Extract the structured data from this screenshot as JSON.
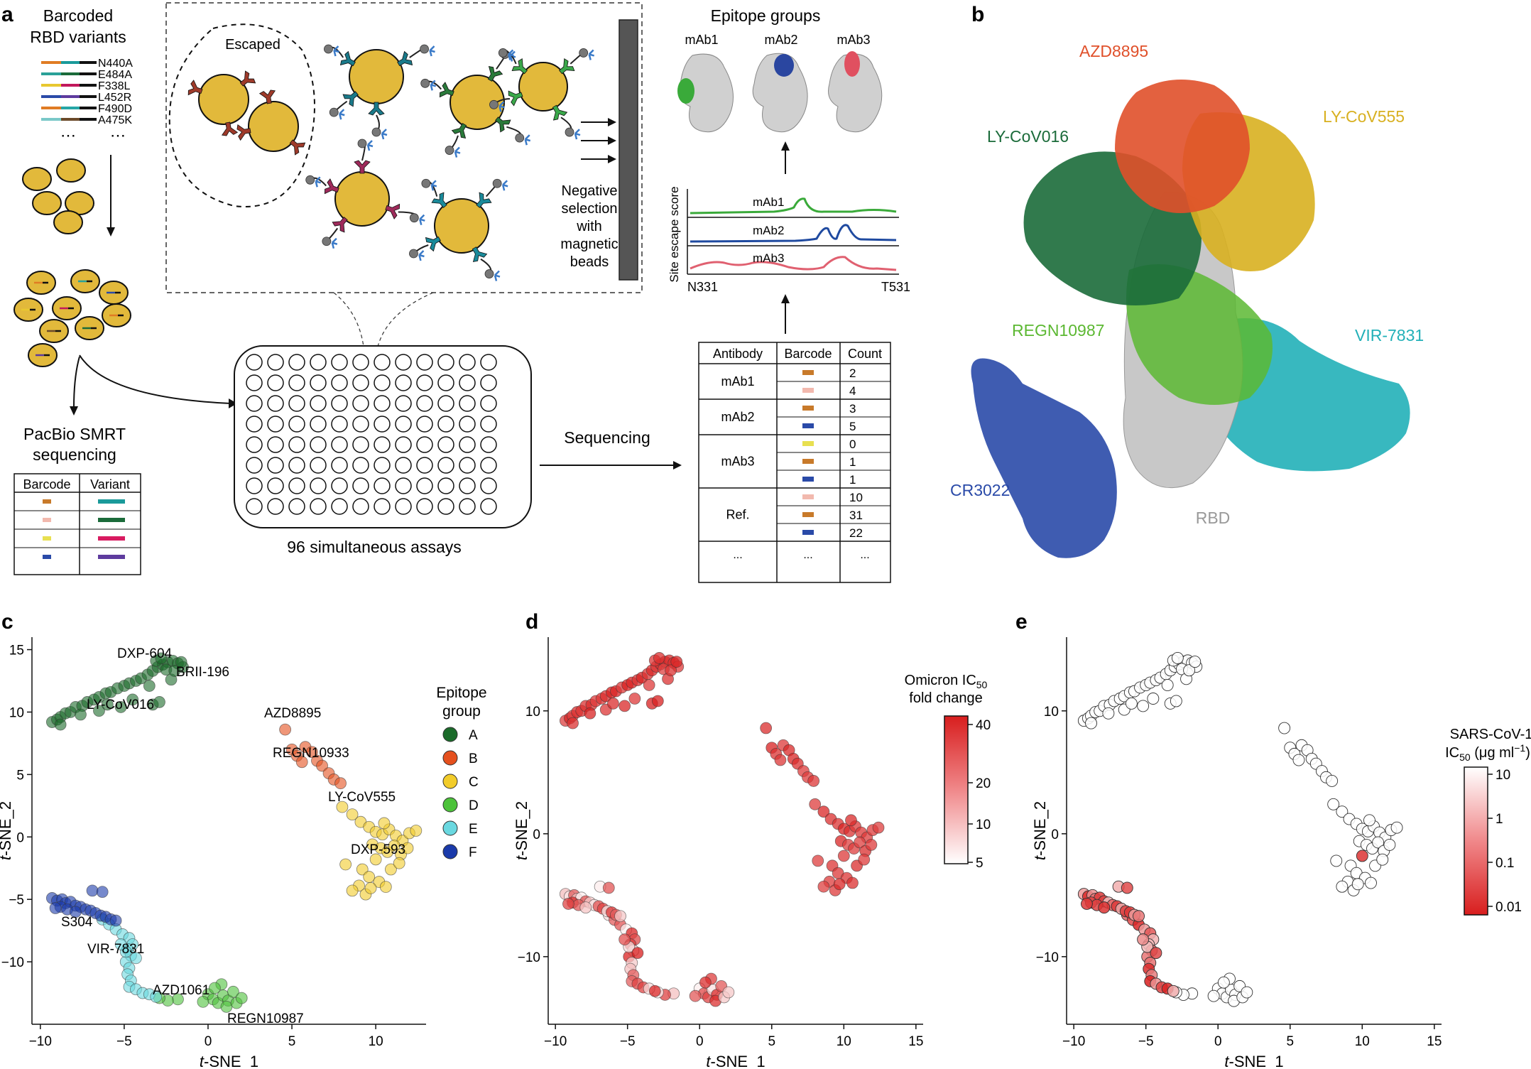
{
  "panel_labels": {
    "a": "a",
    "b": "b",
    "c": "c",
    "d": "d",
    "e": "e"
  },
  "panel_a": {
    "barcoded_title_1": "Barcoded",
    "barcoded_title_2": "RBD variants",
    "variants": [
      {
        "label": "N440A",
        "left": "#e07c24",
        "right": "#1a9a9a"
      },
      {
        "label": "E484A",
        "left": "#2aa198",
        "right": "#1b6b3a"
      },
      {
        "label": "F338L",
        "left": "#e8c830",
        "right": "#c2185b"
      },
      {
        "label": "L452R",
        "left": "#2a4aa8",
        "right": "#5e3b9e"
      },
      {
        "label": "F490D",
        "left": "#e07c24",
        "right": "#26a6a6"
      },
      {
        "label": "A475K",
        "left": "#7ac8c8",
        "right": "#6b4a2a"
      }
    ],
    "ellipsis": "⋯",
    "escaped_label": "Escaped",
    "negative_selection": [
      "Negative",
      "selection",
      "with",
      "magnetic",
      "beads"
    ],
    "pacbio_1": "PacBio SMRT",
    "pacbio_2": "sequencing",
    "barcode_table": {
      "headers": [
        "Barcode",
        "Variant"
      ],
      "rows": [
        {
          "barcode": "#c87a2a",
          "variant": "#1a9a9a"
        },
        {
          "barcode": "#f2b9ae",
          "variant": "#1b6b3a"
        },
        {
          "barcode": "#e8e050",
          "variant": "#d81b60"
        },
        {
          "barcode": "#2a4aa8",
          "variant": "#5e3b9e"
        }
      ]
    },
    "plate_label": "96 simultaneous assays",
    "sequencing_label": "Sequencing",
    "count_table": {
      "headers": [
        "Antibody",
        "Barcode",
        "Count"
      ],
      "groups": [
        {
          "name": "mAb1",
          "rows": [
            {
              "color": "#c87a2a",
              "count": "2"
            },
            {
              "color": "#f2b9ae",
              "count": "4"
            }
          ]
        },
        {
          "name": "mAb2",
          "rows": [
            {
              "color": "#c87a2a",
              "count": "3"
            },
            {
              "color": "#2a4aa8",
              "count": "5"
            }
          ]
        },
        {
          "name": "mAb3",
          "rows": [
            {
              "color": "#e8e050",
              "count": "0"
            },
            {
              "color": "#c87a2a",
              "count": "1"
            },
            {
              "color": "#2a4aa8",
              "count": "1"
            }
          ]
        },
        {
          "name": "Ref.",
          "rows": [
            {
              "color": "#f2b9ae",
              "count": "10"
            },
            {
              "color": "#c87a2a",
              "count": "31"
            },
            {
              "color": "#2a4aa8",
              "count": "22"
            }
          ]
        }
      ],
      "footer": [
        "...",
        "...",
        "..."
      ]
    },
    "epitope_groups_title": "Epitope groups",
    "mab_labels": [
      "mAb1",
      "mAb2",
      "mAb3"
    ],
    "escape_plot": {
      "ylabel": "Site escape score",
      "x_start": "N331",
      "x_end": "T531",
      "traces": [
        {
          "name": "mAb1",
          "color": "#3aaa3a"
        },
        {
          "name": "mAb2",
          "color": "#1f4aa0"
        },
        {
          "name": "mAb3",
          "color": "#e06070"
        }
      ]
    }
  },
  "panel_b": {
    "antibodies": [
      {
        "name": "AZD8895",
        "color": "#e0502a"
      },
      {
        "name": "LY-CoV555",
        "color": "#d8b020"
      },
      {
        "name": "LY-CoV016",
        "color": "#1b6b3a"
      },
      {
        "name": "REGN10987",
        "color": "#5cb832"
      },
      {
        "name": "VIR-7831",
        "color": "#22b0b8"
      },
      {
        "name": "CR3022",
        "color": "#2a4aa8"
      }
    ],
    "rbd_label": "RBD"
  },
  "panel_c": {
    "legend_title_1": "Epitope",
    "legend_title_2": "group",
    "groups": [
      {
        "name": "A",
        "color": "#1b6b2a"
      },
      {
        "name": "B",
        "color": "#e5501e"
      },
      {
        "name": "C",
        "color": "#f2cc2a"
      },
      {
        "name": "D",
        "color": "#4cc23a"
      },
      {
        "name": "E",
        "color": "#6ad8e0"
      },
      {
        "name": "F",
        "color": "#1a3aaa"
      }
    ],
    "annotations": [
      "DXP-604",
      "BRII-196",
      "LY-CoV016",
      "AZD8895",
      "REGN10933",
      "LY-CoV555",
      "DXP-593",
      "S304",
      "VIR-7831",
      "AZD1061",
      "REGN10987"
    ]
  },
  "panel_d": {
    "legend_title_1": "Omicron IC",
    "legend_title_sub": "50",
    "legend_title_2": "fold change",
    "ticks": [
      "40",
      "20",
      "10",
      "5"
    ]
  },
  "panel_e": {
    "legend_title_1": "SARS-CoV-1",
    "legend_title_2": "IC",
    "legend_title_sub": "50",
    "legend_title_3": " (μg ml",
    "legend_title_sup": "−1",
    "legend_title_4": ")",
    "ticks": [
      "10",
      "1",
      "0.1",
      "0.01"
    ]
  },
  "tsne_axes": {
    "xlabel_italic": "t",
    "xlabel_rest": "-SNE_1",
    "ylabel_italic": "t",
    "ylabel_rest": "-SNE_2",
    "c_xticks": [
      "−10",
      "−5",
      "0",
      "5",
      "10"
    ],
    "c_yticks": [
      "15",
      "10",
      "5",
      "0",
      "−5",
      "−10"
    ],
    "de_xticks": [
      "−10",
      "−5",
      "0",
      "5",
      "10",
      "15"
    ],
    "de_yticks": [
      "10",
      "0",
      "−10"
    ]
  },
  "chart_data": [
    {
      "type": "scatter",
      "title": "",
      "xlabel": "t-SNE_1",
      "ylabel": "t-SNE_2",
      "xlim": [
        -10.5,
        13
      ],
      "ylim": [
        -15,
        16
      ],
      "color_by": "Epitope group",
      "series": [
        {
          "name": "A",
          "points": [
            [
              -9.3,
              9.2
            ],
            [
              -9,
              9.4
            ],
            [
              -8.8,
              9.6
            ],
            [
              -8.5,
              9.9
            ],
            [
              -8.2,
              10
            ],
            [
              -7.9,
              10.4
            ],
            [
              -7.5,
              10.5
            ],
            [
              -7.2,
              10.8
            ],
            [
              -6.8,
              11
            ],
            [
              -6.5,
              11.2
            ],
            [
              -6.1,
              11.5
            ],
            [
              -5.8,
              11.6
            ],
            [
              -5.4,
              11.9
            ],
            [
              -5,
              12.1
            ],
            [
              -4.7,
              12.3
            ],
            [
              -4.3,
              12.5
            ],
            [
              -4,
              12.7
            ],
            [
              -3.6,
              13
            ],
            [
              -3.3,
              13.3
            ],
            [
              -3,
              13.6
            ],
            [
              -2.7,
              13.8
            ],
            [
              -2.4,
              14
            ],
            [
              -2.1,
              14.1
            ],
            [
              -1.8,
              13.9
            ],
            [
              -1.5,
              13.6
            ],
            [
              -3.1,
              14.1
            ],
            [
              -2.8,
              14.3
            ],
            [
              -2.5,
              13.4
            ],
            [
              -3.5,
              12.1
            ],
            [
              -2.2,
              12.6
            ],
            [
              -3.3,
              10.6
            ],
            [
              -5.2,
              10.4
            ],
            [
              -6.5,
              10.1
            ],
            [
              -8.8,
              9.0
            ],
            [
              -4.5,
              11.0
            ],
            [
              -6.0,
              10.6
            ],
            [
              -2.9,
              10.8
            ],
            [
              -7.6,
              9.8
            ],
            [
              -2.0,
              13.3
            ],
            [
              -1.6,
              14.0
            ]
          ]
        },
        {
          "name": "B",
          "points": [
            [
              4.6,
              8.6
            ],
            [
              5.0,
              7.0
            ],
            [
              5.3,
              6.5
            ],
            [
              5.8,
              7.2
            ],
            [
              6.2,
              6.8
            ],
            [
              6.5,
              6.1
            ],
            [
              5.6,
              6.0
            ],
            [
              6.8,
              5.7
            ],
            [
              7.2,
              5.1
            ],
            [
              7.5,
              4.6
            ],
            [
              7.9,
              4.3
            ]
          ]
        },
        {
          "name": "C",
          "points": [
            [
              8.0,
              2.4
            ],
            [
              8.6,
              1.8
            ],
            [
              9.1,
              1.2
            ],
            [
              9.6,
              0.8
            ],
            [
              10.0,
              0.4
            ],
            [
              10.4,
              0.2
            ],
            [
              10.8,
              0.6
            ],
            [
              11.2,
              0.1
            ],
            [
              11.6,
              -0.3
            ],
            [
              12.0,
              0.3
            ],
            [
              12.4,
              0.5
            ],
            [
              9.8,
              -0.6
            ],
            [
              10.3,
              -0.9
            ],
            [
              10.7,
              -1.2
            ],
            [
              11.1,
              -0.7
            ],
            [
              11.5,
              -1.4
            ],
            [
              10.0,
              -1.8
            ],
            [
              9.2,
              -2.6
            ],
            [
              9.6,
              -3.2
            ],
            [
              10.2,
              -3.6
            ],
            [
              10.6,
              -4.0
            ],
            [
              9.0,
              -3.9
            ],
            [
              8.6,
              -4.3
            ],
            [
              9.4,
              -4.6
            ],
            [
              10.9,
              -2.6
            ],
            [
              11.4,
              -2.1
            ],
            [
              10.5,
              1.1
            ],
            [
              11.9,
              -0.9
            ],
            [
              8.2,
              -2.2
            ],
            [
              9.7,
              -4.1
            ]
          ]
        },
        {
          "name": "D",
          "points": [
            [
              0.0,
              -12.6
            ],
            [
              0.3,
              -13.0
            ],
            [
              0.6,
              -13.3
            ],
            [
              0.9,
              -12.7
            ],
            [
              1.2,
              -13.1
            ],
            [
              1.5,
              -12.4
            ],
            [
              0.8,
              -11.8
            ],
            [
              1.1,
              -13.6
            ],
            [
              0.4,
              -12.1
            ],
            [
              1.7,
              -13.3
            ],
            [
              2.0,
              -12.9
            ],
            [
              -0.3,
              -13.2
            ],
            [
              -1.8,
              -13.0
            ],
            [
              -2.4,
              -13.1
            ],
            [
              -2.9,
              -12.9
            ]
          ]
        },
        {
          "name": "E",
          "points": [
            [
              -6.3,
              -6.6
            ],
            [
              -5.9,
              -7.0
            ],
            [
              -5.5,
              -7.4
            ],
            [
              -5.1,
              -7.8
            ],
            [
              -4.7,
              -8.1
            ],
            [
              -4.5,
              -8.6
            ],
            [
              -4.8,
              -9.0
            ],
            [
              -4.6,
              -9.5
            ],
            [
              -4.9,
              -10.0
            ],
            [
              -4.7,
              -10.5
            ],
            [
              -4.8,
              -11.0
            ],
            [
              -4.6,
              -11.5
            ],
            [
              -4.7,
              -12.0
            ],
            [
              -4.3,
              -12.2
            ],
            [
              -3.9,
              -12.5
            ],
            [
              -3.5,
              -12.6
            ],
            [
              -3.1,
              -12.8
            ],
            [
              -4.9,
              -9.2
            ],
            [
              -4.3,
              -9.7
            ],
            [
              -5.2,
              -8.6
            ]
          ]
        },
        {
          "name": "F",
          "points": [
            [
              -9.3,
              -4.9
            ],
            [
              -9.0,
              -5.1
            ],
            [
              -8.7,
              -5.0
            ],
            [
              -8.5,
              -5.3
            ],
            [
              -8.2,
              -5.2
            ],
            [
              -7.9,
              -5.5
            ],
            [
              -7.6,
              -5.6
            ],
            [
              -7.3,
              -5.8
            ],
            [
              -7.0,
              -5.9
            ],
            [
              -6.7,
              -6.1
            ],
            [
              -6.4,
              -6.3
            ],
            [
              -6.1,
              -6.4
            ],
            [
              -5.8,
              -6.6
            ],
            [
              -5.5,
              -6.7
            ],
            [
              -8.8,
              -5.6
            ],
            [
              -8.4,
              -5.8
            ],
            [
              -7.9,
              -6.0
            ],
            [
              -6.9,
              -4.3
            ],
            [
              -6.3,
              -4.4
            ],
            [
              -9.1,
              -5.7
            ]
          ]
        }
      ]
    },
    {
      "type": "scatter",
      "title": "",
      "xlabel": "t-SNE_1",
      "ylabel": "t-SNE_2",
      "xlim": [
        -10.5,
        15.5
      ],
      "ylim": [
        -15.5,
        16
      ],
      "color_by": "Omicron IC50 fold change",
      "color_scale": [
        5,
        40
      ],
      "note": "same coordinates as panel c"
    },
    {
      "type": "scatter",
      "title": "",
      "xlabel": "t-SNE_1",
      "ylabel": "t-SNE_2",
      "xlim": [
        -10.5,
        15.5
      ],
      "ylim": [
        -15.5,
        16
      ],
      "color_by": "SARS-CoV-1 IC50 (μg ml−1)",
      "color_scale": [
        0.01,
        10
      ],
      "note": "same coordinates as panel c"
    }
  ]
}
